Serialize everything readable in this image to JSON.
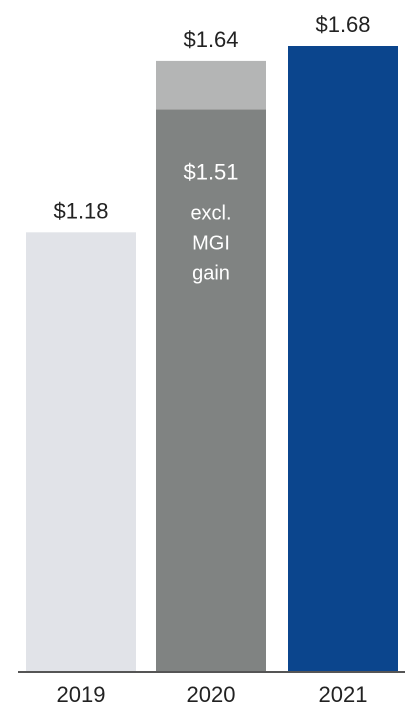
{
  "chart_data": {
    "type": "bar",
    "stacked": true,
    "categories": [
      "2019",
      "2020",
      "2021"
    ],
    "series": [
      {
        "values": [
          1.18,
          1.51,
          1.68
        ]
      },
      {
        "values": [
          0,
          0.13,
          0
        ]
      }
    ],
    "value_labels": [
      "$1.18",
      "$1.64",
      "$1.68"
    ],
    "annotation": {
      "category": "2020",
      "value_label": "$1.51",
      "text_lines": [
        "excl.",
        "MGI",
        "gain"
      ]
    },
    "ylim": [
      0,
      1.68
    ],
    "grid": false,
    "legend": "none",
    "title": "",
    "xlabel": "",
    "ylabel": "",
    "colors": {
      "2019": "#e1e3e8",
      "2020_base": "#808382",
      "2020_top": "#b4b5b5",
      "2021": "#0b458d",
      "axis": "#555555"
    }
  }
}
